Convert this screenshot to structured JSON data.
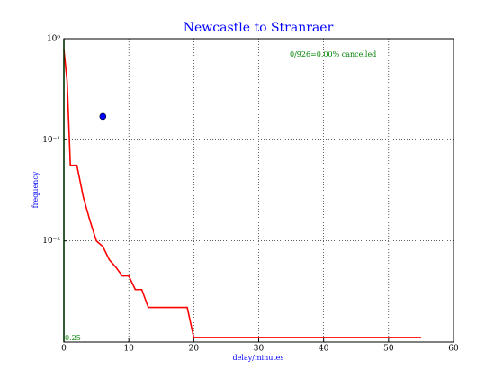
{
  "chart_data": {
    "type": "line",
    "title": "Newcastle to Stranraer",
    "x_label": "delay/minutes",
    "y_label": "frequency",
    "annotations": [
      "0/926=0.00% cancelled",
      "0.25"
    ],
    "log_y": true,
    "grid": true,
    "xlim": [
      0,
      60
    ],
    "xticks": [
      0,
      10,
      20,
      30,
      40,
      50,
      60
    ],
    "ylim": [
      0.001,
      1
    ],
    "yticks": [
      {
        "value": 1,
        "label": "10⁰"
      },
      {
        "value": 0.1,
        "label": "10⁻¹"
      },
      {
        "value": 0.01,
        "label": "10⁻²"
      }
    ],
    "series": [
      {
        "color": "#ff0000",
        "style": "line",
        "x": [
          0,
          0.5,
          1,
          2,
          3,
          4,
          5,
          6,
          7,
          8,
          9,
          10,
          11,
          12,
          13,
          19,
          20,
          55
        ],
        "values": [
          0.78,
          0.38,
          0.056,
          0.056,
          0.027,
          0.016,
          0.01,
          0.0088,
          0.0065,
          0.0055,
          0.0045,
          0.0045,
          0.0033,
          0.0033,
          0.0022,
          0.0022,
          0.00111,
          0.00111
        ]
      },
      {
        "color": "#008000",
        "style": "line",
        "x": [
          0,
          0
        ],
        "values": [
          0.001,
          1
        ]
      },
      {
        "color": "#0000ff",
        "style": "point",
        "x": [
          6
        ],
        "values": [
          0.17
        ]
      }
    ]
  }
}
